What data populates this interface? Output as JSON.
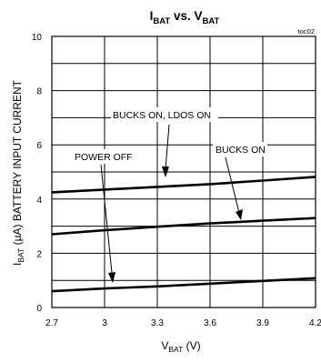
{
  "chart_data": {
    "type": "line",
    "title": {
      "main": "I",
      "sub1": "BAT",
      "mid": " vs. V",
      "sub2": "BAT"
    },
    "figure_id": "toc02",
    "xlabel": {
      "main": "V",
      "sub": "BAT",
      "unit": " (V)"
    },
    "ylabel": {
      "pre": "I",
      "sub": "BAT",
      "post": " (µA) BATTERY INPUT CURRENT"
    },
    "xlim": [
      2.7,
      4.2
    ],
    "ylim": [
      0,
      10
    ],
    "x_ticks": [
      "2.7",
      "3",
      "3.3",
      "3.6",
      "3.9",
      "4.2"
    ],
    "y_ticks": [
      "0",
      "2",
      "4",
      "6",
      "8",
      "10"
    ],
    "grid": true,
    "series": [
      {
        "name": "BUCKS ON, LDOS ON",
        "x": [
          2.7,
          3.0,
          3.3,
          3.6,
          3.9,
          4.2
        ],
        "values": [
          4.25,
          4.35,
          4.45,
          4.55,
          4.68,
          4.82
        ]
      },
      {
        "name": "BUCKS ON",
        "x": [
          2.7,
          3.0,
          3.3,
          3.6,
          3.9,
          4.2
        ],
        "values": [
          2.7,
          2.85,
          2.98,
          3.1,
          3.2,
          3.3
        ]
      },
      {
        "name": "POWER OFF",
        "x": [
          2.7,
          3.0,
          3.3,
          3.6,
          3.9,
          4.2
        ],
        "values": [
          0.6,
          0.7,
          0.78,
          0.88,
          0.98,
          1.08
        ]
      }
    ]
  }
}
